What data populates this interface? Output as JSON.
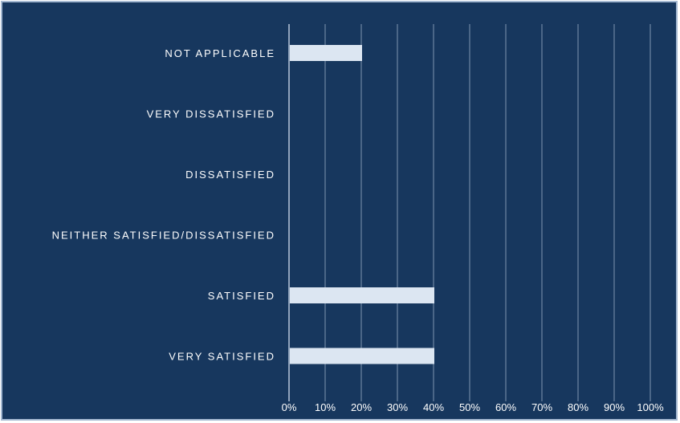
{
  "chart_data": {
    "type": "bar",
    "orientation": "horizontal",
    "categories": [
      "NOT APPLICABLE",
      "VERY DISSATISFIED",
      "DISSATISFIED",
      "NEITHER SATISFIED/DISSATISFIED",
      "SATISFIED",
      "VERY SATISFIED"
    ],
    "values": [
      20,
      0,
      0,
      0,
      40,
      40
    ],
    "x_ticks": [
      "0%",
      "10%",
      "20%",
      "30%",
      "40%",
      "50%",
      "60%",
      "70%",
      "80%",
      "90%",
      "100%"
    ],
    "xlim": [
      0,
      100
    ],
    "grid": "vertical",
    "legend": "none",
    "colors": {
      "background": "#17375e",
      "bar": "#dce6f2",
      "gridline": "#7f94b0",
      "axis": "#b9c7da",
      "text": "#ffffff",
      "border": "#a5b9d2"
    }
  }
}
